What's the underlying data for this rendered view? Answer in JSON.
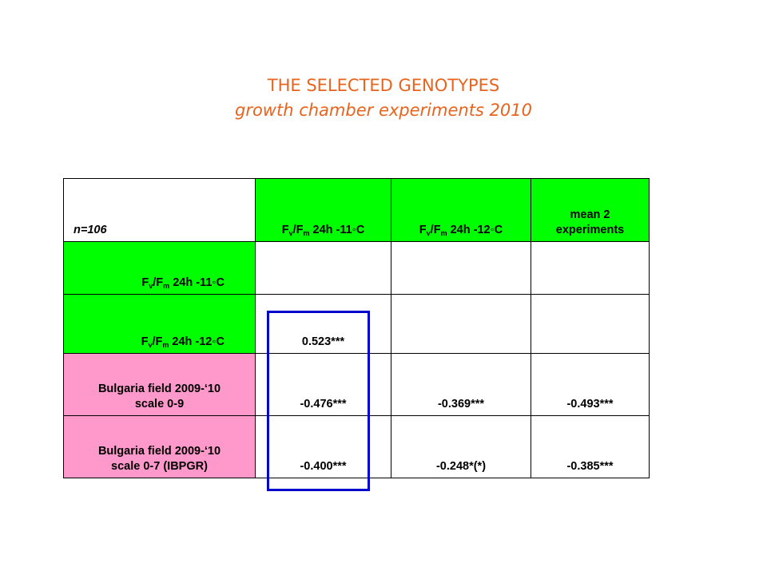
{
  "slide": {
    "title_line1": "THE SELECTED GENOTYPES",
    "title_line2": "growth chamber experiments 2010"
  },
  "colors": {
    "title": "#e8641e",
    "header_green": "#00ff00",
    "row_pink": "#ff99cc",
    "highlight_box": "#0000cc"
  },
  "table": {
    "corner": "n=106",
    "fvfm_prefix": "F",
    "fvfm_sub_v": "v",
    "fvfm_slash": "/F",
    "fvfm_sub_m": "m",
    "col1_suffix": " 24h -11◦C",
    "col2_suffix": " 24h -12◦C",
    "col3_line1": "mean 2",
    "col3_line2": "experiments",
    "row1_suffix": " 24h -11◦C",
    "row2_suffix": " 24h -12◦C",
    "row2_c1": "0.523***",
    "row3_line1": "Bulgaria field 2009-‘10",
    "row3_line2": "scale 0-9",
    "row3_c1": "-0.476***",
    "row3_c2": "-0.369***",
    "row3_c3": "-0.493***",
    "row4_line1": "Bulgaria field 2009-‘10",
    "row4_line2": "scale 0-7 (IBPGR)",
    "row4_c1": "-0.400***",
    "row4_c2": "-0.248*(*)",
    "row4_c3": "-0.385***"
  }
}
